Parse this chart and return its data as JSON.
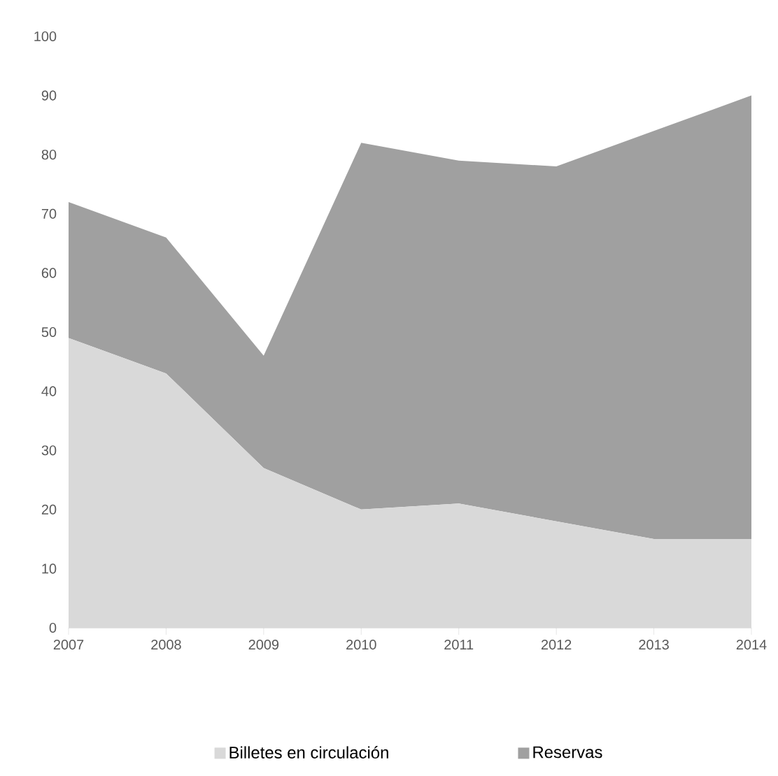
{
  "chart_data": {
    "type": "area",
    "stacked": true,
    "x": [
      2007,
      2008,
      2009,
      2010,
      2011,
      2012,
      2013,
      2014
    ],
    "series": [
      {
        "name": "Billetes en circulación",
        "color": "#d9d9d9",
        "values": [
          49,
          43,
          27,
          20,
          21,
          18,
          15,
          15
        ]
      },
      {
        "name": "Reservas",
        "color": "#a0a0a0",
        "values": [
          23,
          23,
          19,
          62,
          58,
          60,
          69,
          75
        ]
      }
    ],
    "xlim": [
      2007,
      2014
    ],
    "xticks": [
      2007,
      2008,
      2009,
      2010,
      2011,
      2012,
      2013,
      2014
    ],
    "ylim": [
      0,
      100
    ],
    "yticks": [
      0,
      10,
      20,
      30,
      40,
      50,
      60,
      70,
      80,
      90,
      100
    ],
    "grid": false,
    "legend": "bottom"
  }
}
